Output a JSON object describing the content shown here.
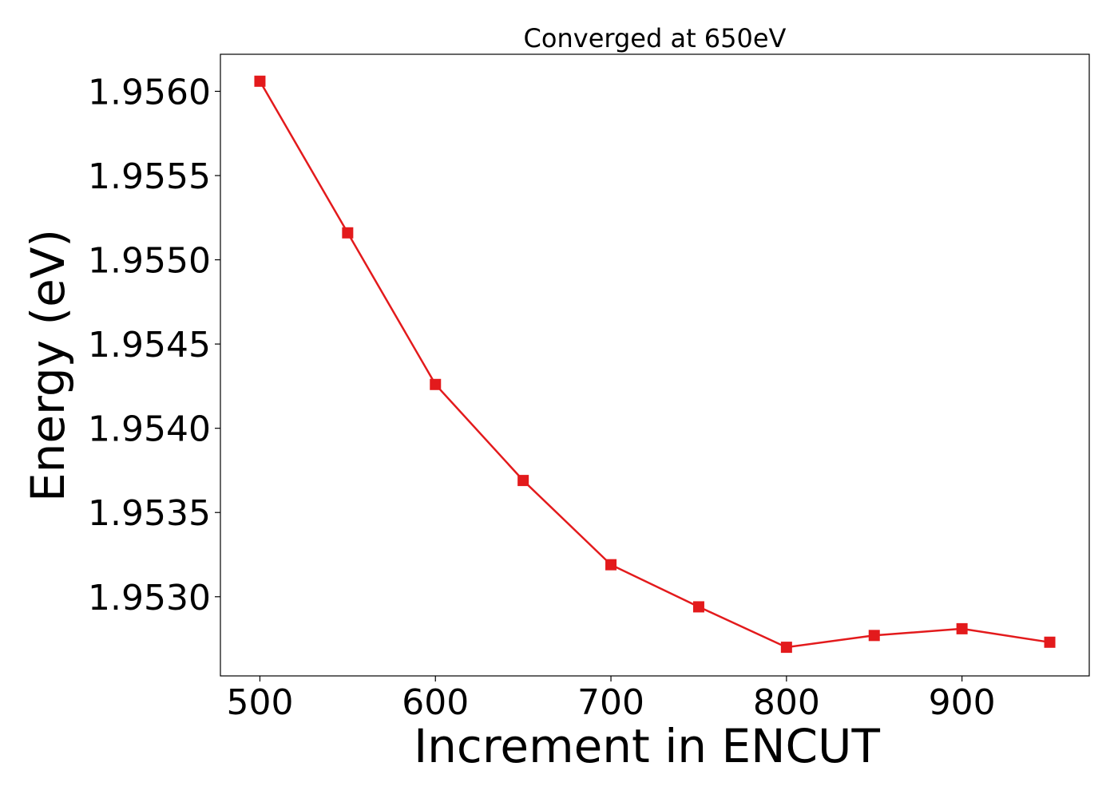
{
  "chart_data": {
    "type": "line",
    "title": "Converged at 650eV",
    "xlabel": "Increment in ENCUT",
    "ylabel": "Energy (eV)",
    "xlim": [
      477.5,
      972.5
    ],
    "ylim": [
      1.95253,
      1.95622
    ],
    "xticks": [
      500,
      600,
      700,
      800,
      900
    ],
    "yticks": [
      1.953,
      1.9535,
      1.954,
      1.9545,
      1.955,
      1.9555,
      1.956
    ],
    "ytick_decimals": 4,
    "grid": false,
    "series": [
      {
        "color": "#e31a1c",
        "marker": "square",
        "x": [
          500,
          550,
          600,
          650,
          700,
          750,
          800,
          850,
          900,
          950
        ],
        "y": [
          1.95606,
          1.95516,
          1.95426,
          1.95369,
          1.95319,
          1.95294,
          1.9527,
          1.95277,
          1.95281,
          1.95273
        ]
      }
    ]
  }
}
